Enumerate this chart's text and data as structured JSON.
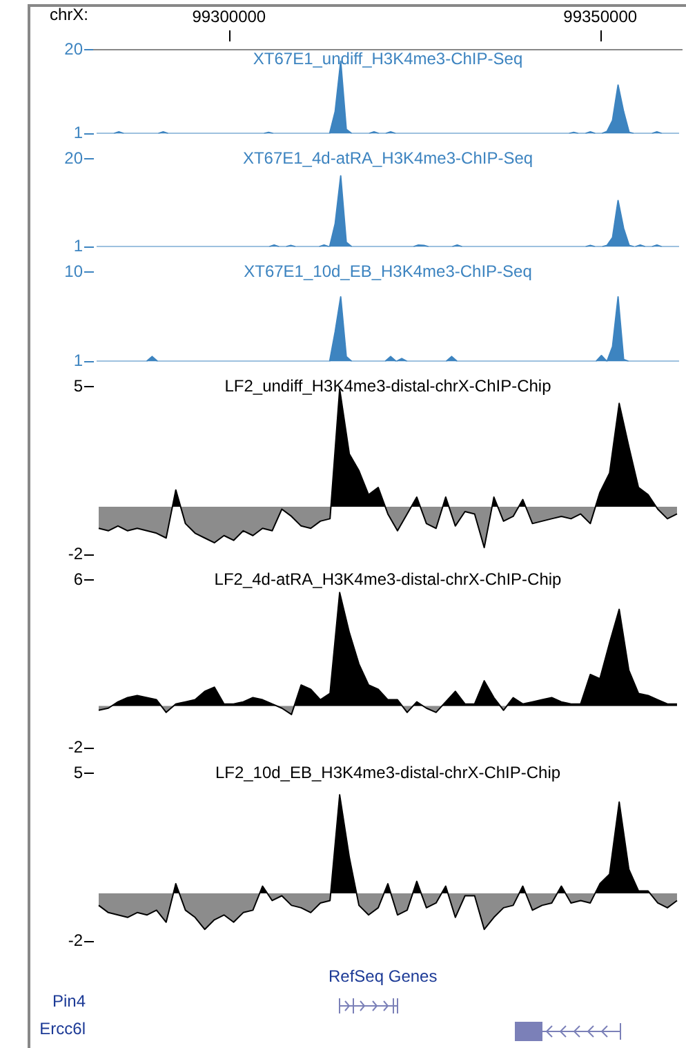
{
  "chart_data": [
    {
      "type": "area",
      "title": "XT67E1_undiff_H3K4me3-ChIP-Seq",
      "x2label": "chrX:",
      "x2lim": [
        99281800,
        99361000
      ],
      "x2ticks": [
        99300000,
        99350000
      ],
      "ylim": [
        1,
        20
      ],
      "yticks": [
        1,
        20
      ],
      "tick_labels": "y",
      "categories": [
        null,
        null,
        null,
        null,
        null,
        null,
        null,
        null,
        null,
        null,
        null,
        null,
        null,
        null,
        null,
        null,
        null,
        null,
        null,
        null,
        null,
        null,
        null,
        null,
        null,
        null,
        null,
        null,
        null,
        null,
        null,
        null,
        null,
        null,
        null,
        null,
        null,
        null,
        null,
        null,
        null,
        null,
        null,
        null,
        null,
        null,
        null,
        null,
        null,
        null,
        null,
        null,
        null,
        null,
        null,
        null,
        null,
        null,
        null,
        null,
        null,
        null,
        null,
        null,
        null,
        null,
        null,
        null,
        null,
        null,
        null,
        null,
        null,
        null,
        null,
        null,
        null,
        null,
        null,
        null,
        null,
        null,
        null,
        null,
        null,
        null,
        null,
        null,
        null,
        null,
        null,
        null,
        null,
        null,
        null,
        null,
        null,
        null,
        null,
        null,
        null,
        null,
        null,
        null,
        null,
        null
      ],
      "series": [
        {
          "color": "#3d84c0",
          "values": [
            1,
            1,
            1,
            1,
            1.4,
            1,
            1,
            1,
            1,
            1,
            1,
            1,
            1.4,
            1,
            1,
            1,
            1,
            1,
            1,
            1,
            1,
            1,
            1,
            1,
            1,
            1,
            1,
            1,
            1,
            1,
            1,
            1.3,
            1,
            1,
            1,
            1,
            1,
            1,
            1,
            1,
            1,
            1,
            1,
            6,
            17.4,
            2,
            1,
            1,
            1,
            1,
            1.4,
            1,
            1,
            1.4,
            1,
            1,
            1,
            1,
            1,
            1,
            1,
            1,
            1,
            1,
            1,
            1,
            1,
            1,
            1,
            1,
            1,
            1,
            1,
            1,
            1,
            1,
            1,
            1,
            1,
            1,
            1,
            1,
            1,
            1,
            1,
            1,
            1.3,
            1,
            1,
            1.4,
            1,
            1,
            1.5,
            4,
            12,
            6,
            1.3,
            1,
            1,
            1,
            1,
            1.4,
            1,
            1,
            1,
            1
          ]
        }
      ]
    },
    {
      "type": "area",
      "title": "XT67E1_4d-atRA_H3K4me3-ChIP-Seq",
      "ylim": [
        1,
        20
      ],
      "yticks": [
        1,
        20
      ],
      "tick_labels": "y",
      "categories": [
        null,
        null,
        null,
        null,
        null,
        null,
        null,
        null,
        null,
        null,
        null,
        null,
        null,
        null,
        null,
        null,
        null,
        null,
        null,
        null,
        null,
        null,
        null,
        null,
        null,
        null,
        null,
        null,
        null,
        null,
        null,
        null,
        null,
        null,
        null,
        null,
        null,
        null,
        null,
        null,
        null,
        null,
        null,
        null,
        null,
        null,
        null,
        null,
        null,
        null,
        null,
        null,
        null,
        null,
        null,
        null,
        null,
        null,
        null,
        null,
        null,
        null,
        null,
        null,
        null,
        null,
        null,
        null,
        null,
        null,
        null,
        null,
        null,
        null,
        null,
        null,
        null,
        null,
        null,
        null,
        null,
        null,
        null,
        null,
        null,
        null,
        null,
        null,
        null,
        null,
        null,
        null,
        null,
        null,
        null,
        null,
        null,
        null,
        null,
        null,
        null,
        null,
        null,
        null,
        null,
        null
      ],
      "series": [
        {
          "color": "#3d84c0",
          "values": [
            1,
            1,
            1,
            1,
            1,
            1,
            1,
            1,
            1,
            1,
            1,
            1,
            1,
            1,
            1,
            1,
            1,
            1,
            1,
            1,
            1,
            1,
            1,
            1,
            1,
            1,
            1,
            1,
            1,
            1,
            1,
            1,
            1.4,
            1,
            1,
            1.3,
            1,
            1,
            1,
            1,
            1,
            1.4,
            1,
            6,
            16.3,
            2,
            1,
            1,
            1,
            1,
            1,
            1,
            1,
            1,
            1,
            1,
            1,
            1,
            1.4,
            1.3,
            1,
            1,
            1,
            1,
            1,
            1.4,
            1,
            1,
            1,
            1,
            1,
            1,
            1,
            1,
            1,
            1,
            1,
            1,
            1,
            1,
            1,
            1,
            1,
            1,
            1,
            1,
            1,
            1,
            1,
            1.3,
            1,
            1,
            1.3,
            3,
            11,
            5,
            1.3,
            1,
            1.4,
            1,
            1,
            1.4,
            1,
            1,
            1,
            1
          ]
        }
      ]
    },
    {
      "type": "area",
      "title": "XT67E1_10d_EB_H3K4me3-ChIP-Seq",
      "ylim": [
        1,
        10
      ],
      "yticks": [
        1,
        10
      ],
      "tick_labels": "y",
      "categories": [
        null,
        null,
        null,
        null,
        null,
        null,
        null,
        null,
        null,
        null,
        null,
        null,
        null,
        null,
        null,
        null,
        null,
        null,
        null,
        null,
        null,
        null,
        null,
        null,
        null,
        null,
        null,
        null,
        null,
        null,
        null,
        null,
        null,
        null,
        null,
        null,
        null,
        null,
        null,
        null,
        null,
        null,
        null,
        null,
        null,
        null,
        null,
        null,
        null,
        null,
        null,
        null,
        null,
        null,
        null,
        null,
        null,
        null,
        null,
        null,
        null,
        null,
        null,
        null,
        null,
        null,
        null,
        null,
        null,
        null,
        null,
        null,
        null,
        null,
        null,
        null,
        null,
        null,
        null,
        null,
        null,
        null,
        null,
        null,
        null,
        null,
        null,
        null,
        null,
        null,
        null,
        null,
        null,
        null,
        null,
        null,
        null,
        null,
        null,
        null,
        null,
        null,
        null,
        null,
        null,
        null
      ],
      "series": [
        {
          "color": "#3d84c0",
          "values": [
            1,
            1,
            1,
            1,
            1,
            1,
            1,
            1,
            1,
            1,
            1.5,
            1,
            1,
            1,
            1,
            1,
            1,
            1,
            1,
            1,
            1,
            1,
            1,
            1,
            1,
            1,
            1,
            1,
            1,
            1,
            1,
            1,
            1,
            1,
            1,
            1,
            1,
            1,
            1,
            1,
            1,
            1,
            1,
            4,
            7.5,
            1.5,
            1,
            1,
            1,
            1,
            1,
            1,
            1,
            1.5,
            1,
            1.3,
            1,
            1,
            1,
            1,
            1,
            1,
            1,
            1,
            1.5,
            1,
            1,
            1,
            1,
            1,
            1,
            1,
            1,
            1,
            1,
            1,
            1,
            1,
            1,
            1,
            1,
            1,
            1,
            1,
            1,
            1,
            1,
            1,
            1,
            1,
            1,
            1.6,
            1,
            2.5,
            7.5,
            1.2,
            1,
            1,
            1,
            1,
            1,
            1,
            1,
            1,
            1,
            1
          ]
        }
      ]
    },
    {
      "type": "area",
      "title": "LF2_undiff_H3K4me3-distal-chrX-ChIP-Chip",
      "ylim": [
        -2,
        5
      ],
      "yticks": [
        -2,
        5
      ],
      "tick_labels": "y",
      "categories": [
        null,
        null,
        null,
        null,
        null,
        null,
        null,
        null,
        null,
        null,
        null,
        null,
        null,
        null,
        null,
        null,
        null,
        null,
        null,
        null,
        null,
        null,
        null,
        null,
        null,
        null,
        null,
        null,
        null,
        null,
        null,
        null,
        null,
        null,
        null,
        null,
        null,
        null,
        null,
        null,
        null,
        null,
        null,
        null,
        null,
        null,
        null,
        null,
        null,
        null,
        null,
        null,
        null,
        null,
        null,
        null,
        null,
        null,
        null,
        null,
        null
      ],
      "series": [
        {
          "color": "#000000",
          "values": [
            -0.9,
            -1.0,
            -0.8,
            -1.0,
            -0.9,
            -1.0,
            -1.1,
            -1.3,
            0.7,
            -0.7,
            -1.1,
            -1.3,
            -1.5,
            -1.2,
            -1.4,
            -1.0,
            -1.2,
            -0.9,
            -1.0,
            -0.1,
            -0.4,
            -0.8,
            -0.9,
            -0.6,
            -0.5,
            4.9,
            2.2,
            1.5,
            0.5,
            0.8,
            -0.3,
            -1.0,
            -0.3,
            0.4,
            -0.7,
            -0.9,
            0.4,
            -0.8,
            -0.2,
            -0.3,
            -1.7,
            0.4,
            -0.6,
            -0.4,
            0.3,
            -0.7,
            -0.6,
            -0.5,
            -0.4,
            -0.5,
            -0.3,
            -0.7,
            0.6,
            1.4,
            4.3,
            2.5,
            0.8,
            0.5,
            -0.1,
            -0.5,
            -0.3
          ]
        }
      ]
    },
    {
      "type": "area",
      "title": "LF2_4d-atRA_H3K4me3-distal-chrX-ChIP-Chip",
      "ylim": [
        -2,
        6
      ],
      "yticks": [
        -2,
        6
      ],
      "tick_labels": "y",
      "categories": [
        null,
        null,
        null,
        null,
        null,
        null,
        null,
        null,
        null,
        null,
        null,
        null,
        null,
        null,
        null,
        null,
        null,
        null,
        null,
        null,
        null,
        null,
        null,
        null,
        null,
        null,
        null,
        null,
        null,
        null,
        null,
        null,
        null,
        null,
        null,
        null,
        null,
        null,
        null,
        null,
        null,
        null,
        null,
        null,
        null,
        null,
        null,
        null,
        null,
        null,
        null,
        null,
        null,
        null,
        null,
        null,
        null,
        null,
        null,
        null,
        null
      ],
      "series": [
        {
          "color": "#000000",
          "values": [
            -0.2,
            -0.1,
            0.2,
            0.4,
            0.5,
            0.4,
            0.3,
            -0.3,
            0.1,
            0.2,
            0.3,
            0.7,
            0.9,
            0.1,
            0.1,
            0.2,
            0.4,
            0.3,
            0.1,
            -0.1,
            -0.4,
            1.0,
            0.8,
            0.3,
            0.6,
            5.4,
            3.5,
            2.0,
            1.0,
            0.8,
            0.3,
            0.3,
            -0.3,
            0.2,
            -0.1,
            -0.3,
            0.2,
            0.7,
            0.1,
            0.1,
            1.2,
            0.4,
            -0.2,
            0.4,
            0.1,
            0.2,
            0.3,
            0.4,
            0.2,
            0.1,
            0.1,
            1.5,
            1.3,
            3.0,
            4.6,
            1.7,
            0.6,
            0.5,
            0.3,
            0.1,
            0.1
          ]
        }
      ]
    },
    {
      "type": "area",
      "title": "LF2_10d_EB_H3K4me3-distal-chrX-ChIP-Chip",
      "ylim": [
        -2,
        5
      ],
      "yticks": [
        -2,
        5
      ],
      "tick_labels": "y",
      "annotations": [
        "RefSeq Genes",
        "Pin4",
        "Ercc6l"
      ],
      "categories": [
        null,
        null,
        null,
        null,
        null,
        null,
        null,
        null,
        null,
        null,
        null,
        null,
        null,
        null,
        null,
        null,
        null,
        null,
        null,
        null,
        null,
        null,
        null,
        null,
        null,
        null,
        null,
        null,
        null,
        null,
        null,
        null,
        null,
        null,
        null,
        null,
        null,
        null,
        null,
        null,
        null,
        null,
        null,
        null,
        null,
        null,
        null,
        null,
        null,
        null,
        null,
        null,
        null,
        null,
        null,
        null,
        null,
        null,
        null,
        null,
        null
      ],
      "series": [
        {
          "color": "#000000",
          "values": [
            -0.5,
            -0.8,
            -0.9,
            -1.0,
            -0.8,
            -0.9,
            -0.7,
            -1.2,
            0.4,
            -0.7,
            -1.0,
            -1.5,
            -1.1,
            -0.9,
            -1.2,
            -0.8,
            -0.7,
            0.3,
            -0.3,
            -0.1,
            -0.5,
            -0.6,
            -0.8,
            -0.4,
            -0.3,
            4.1,
            1.5,
            -0.5,
            -0.9,
            -0.6,
            0.4,
            -0.9,
            -0.7,
            0.5,
            -0.6,
            -0.4,
            0.3,
            -1.0,
            -0.1,
            -0.1,
            -1.5,
            -1.0,
            -0.6,
            -0.5,
            0.3,
            -0.7,
            -0.5,
            -0.4,
            0.3,
            -0.4,
            -0.3,
            -0.4,
            0.4,
            0.8,
            3.8,
            1.0,
            0.1,
            0.1,
            -0.4,
            -0.6,
            -0.3
          ]
        }
      ]
    }
  ]
}
